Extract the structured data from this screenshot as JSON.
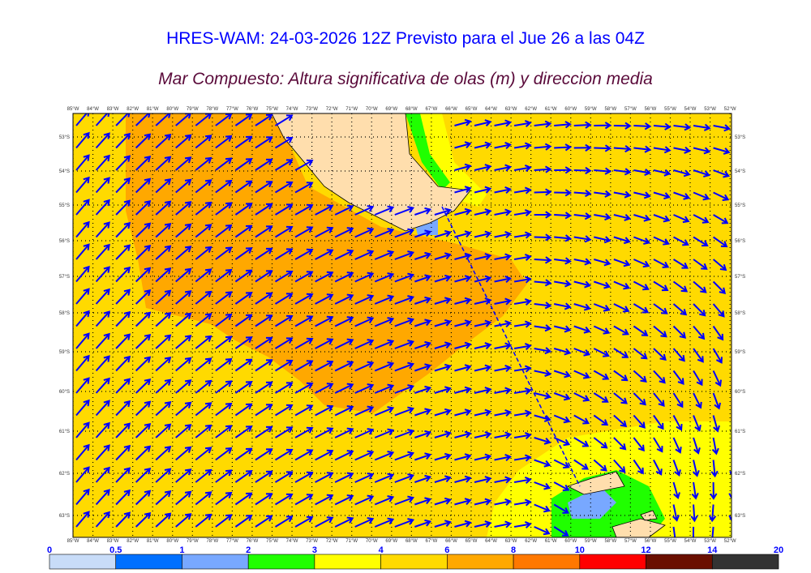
{
  "title": "HRES-WAM: 24-03-2026 12Z Previsto para el Jue 26 a las 04Z",
  "subtitle": "Mar Compuesto: Altura significativa de olas (m) y direccion media",
  "map": {
    "region": "Drake Passage / Tierra del Fuego",
    "lon_labels": [
      "85°W",
      "84°W",
      "83°W",
      "82°W",
      "81°W",
      "80°W",
      "79°W",
      "78°W",
      "77°W",
      "76°W",
      "75°W",
      "74°W",
      "73°W",
      "72°W",
      "71°W",
      "70°W",
      "69°W",
      "68°W",
      "67°W",
      "66°W",
      "65°W",
      "64°W",
      "63°W",
      "62°W",
      "61°W",
      "60°W",
      "59°W",
      "58°W",
      "57°W",
      "56°W",
      "55°W",
      "54°W",
      "53°W",
      "52°W"
    ],
    "lat_labels": [
      "53°S",
      "54°S",
      "55°S",
      "56°S",
      "57°S",
      "58°S",
      "59°S",
      "60°S",
      "61°S",
      "62°S",
      "63°S"
    ],
    "land_color": "#FFDEAD",
    "arrow_color": "#0000ff"
  },
  "colorbar": {
    "unit": "m",
    "labels": [
      "0",
      "0.5",
      "1",
      "2",
      "3",
      "4",
      "6",
      "8",
      "10",
      "12",
      "14",
      "20"
    ],
    "colors": [
      "#C8DCF8",
      "#0070FF",
      "#78A8FF",
      "#20FF00",
      "#FFFF00",
      "#FFDA00",
      "#FFA800",
      "#FF7800",
      "#FF0000",
      "#6A0F00",
      "#333333"
    ]
  }
}
